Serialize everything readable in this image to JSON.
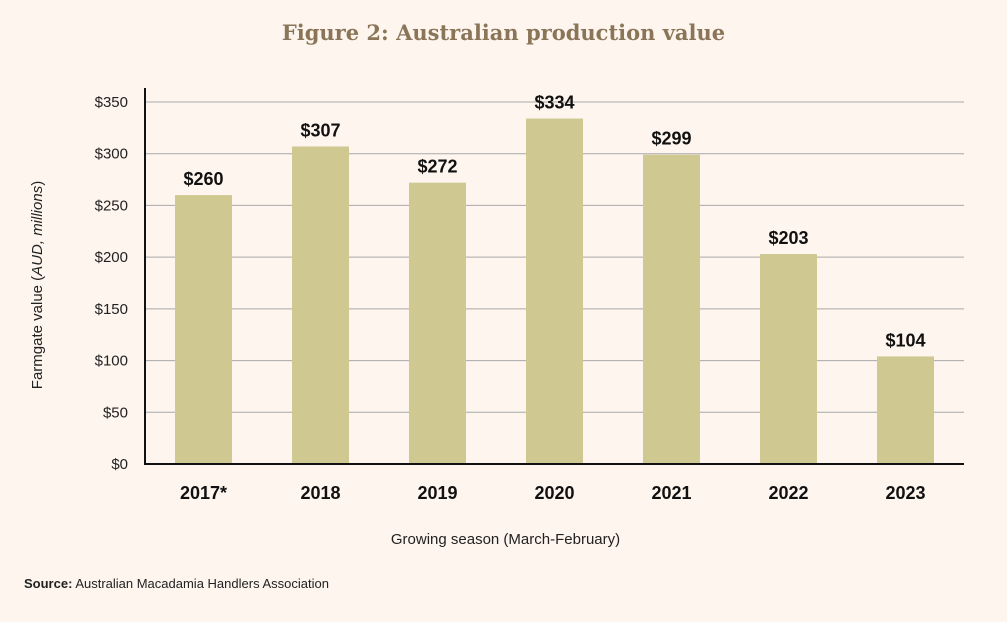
{
  "chart_data": {
    "type": "bar",
    "title": "Figure 2: Australian production value",
    "categories": [
      "2017*",
      "2018",
      "2019",
      "2020",
      "2021",
      "2022",
      "2023"
    ],
    "values": [
      260,
      307,
      272,
      334,
      299,
      203,
      104
    ],
    "value_labels": [
      "$260",
      "$307",
      "$272",
      "$334",
      "$299",
      "$203",
      "$104"
    ],
    "ylabel_prefix": "Farmgate value (",
    "ylabel_italic": "AUD, millions",
    "ylabel_suffix": ")",
    "xlabel": "Growing season (March-February)",
    "yticks": [
      0,
      50,
      100,
      150,
      200,
      250,
      300,
      350
    ],
    "ytick_labels": [
      "$0",
      "$50",
      "$100",
      "$150",
      "$200",
      "$250",
      "$300",
      "$350"
    ],
    "ylim": [
      0,
      350
    ],
    "grid": true,
    "bar_color": "#cfc890",
    "grid_color": "#a9a9a9",
    "axis_color": "#111111",
    "title_color": "#8a7558",
    "background": "#fdf5ee"
  },
  "source": {
    "label": "Source:",
    "text": "Australian Macadamia Handlers Association"
  }
}
